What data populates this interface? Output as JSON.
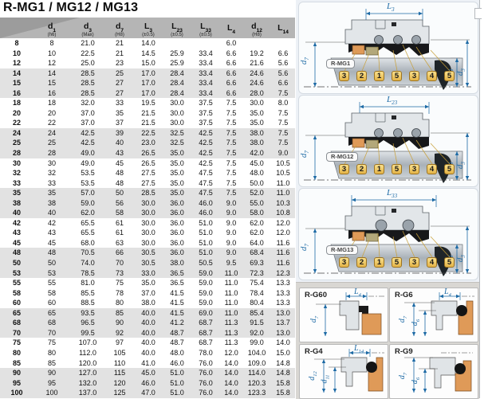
{
  "title": "R-MG1 / MG12 / MG13",
  "colors": {
    "dimension_blue": "#1d6aa5",
    "balloon_gold": "#e3b347",
    "seal_face_orange": "#df9a58",
    "seat_ring_olive": "#b3a87a",
    "row_shade_gray": "#e2e2e2",
    "header_gray": "#b5b5b5"
  },
  "table": {
    "headers": [
      {
        "sym": "",
        "sub": "",
        "tol": ""
      },
      {
        "sym": "d",
        "sub": "1",
        "tol": "(h6)"
      },
      {
        "sym": "d",
        "sub": "3",
        "tol": "(Max)"
      },
      {
        "sym": "d",
        "sub": "7",
        "tol": "(H8)"
      },
      {
        "sym": "L",
        "sub": "3",
        "tol": "(±0.5)"
      },
      {
        "sym": "L",
        "sub": "23",
        "tol": "(±0.5)"
      },
      {
        "sym": "L",
        "sub": "33",
        "tol": "(±0.5)"
      },
      {
        "sym": "L",
        "sub": "4",
        "tol": ""
      },
      {
        "sym": "d",
        "sub": "12",
        "tol": "(H8)"
      },
      {
        "sym": "L",
        "sub": "14",
        "tol": ""
      }
    ],
    "rows": [
      [
        "8",
        "8",
        "21.0",
        "21",
        "14.0",
        "",
        "",
        "6.0",
        "",
        ""
      ],
      [
        "10",
        "10",
        "22.5",
        "21",
        "14.5",
        "25.9",
        "33.4",
        "6.6",
        "19.2",
        "6.6"
      ],
      [
        "12",
        "12",
        "25.0",
        "23",
        "15.0",
        "25.9",
        "33.4",
        "6.6",
        "21.6",
        "5.6"
      ],
      [
        "14",
        "14",
        "28.5",
        "25",
        "17.0",
        "28.4",
        "33.4",
        "6.6",
        "24.6",
        "5.6"
      ],
      [
        "15",
        "15",
        "28.5",
        "27",
        "17.0",
        "28.4",
        "33.4",
        "6.6",
        "24.6",
        "6.6"
      ],
      [
        "16",
        "16",
        "28.5",
        "27",
        "17.0",
        "28.4",
        "33.4",
        "6.6",
        "28.0",
        "7.5"
      ],
      [
        "18",
        "18",
        "32.0",
        "33",
        "19.5",
        "30.0",
        "37.5",
        "7.5",
        "30.0",
        "8.0"
      ],
      [
        "20",
        "20",
        "37.0",
        "35",
        "21.5",
        "30.0",
        "37.5",
        "7.5",
        "35.0",
        "7.5"
      ],
      [
        "22",
        "22",
        "37.0",
        "37",
        "21.5",
        "30.0",
        "37.5",
        "7.5",
        "35.0",
        "7.5"
      ],
      [
        "24",
        "24",
        "42.5",
        "39",
        "22.5",
        "32.5",
        "42.5",
        "7.5",
        "38.0",
        "7.5"
      ],
      [
        "25",
        "25",
        "42.5",
        "40",
        "23.0",
        "32.5",
        "42.5",
        "7.5",
        "38.0",
        "7.5"
      ],
      [
        "28",
        "28",
        "49.0",
        "43",
        "26.5",
        "35.0",
        "42.5",
        "7.5",
        "42.0",
        "9.0"
      ],
      [
        "30",
        "30",
        "49.0",
        "45",
        "26.5",
        "35.0",
        "42.5",
        "7.5",
        "45.0",
        "10.5"
      ],
      [
        "32",
        "32",
        "53.5",
        "48",
        "27.5",
        "35.0",
        "47.5",
        "7.5",
        "48.0",
        "10.5"
      ],
      [
        "33",
        "33",
        "53.5",
        "48",
        "27.5",
        "35.0",
        "47.5",
        "7.5",
        "50.0",
        "11.0"
      ],
      [
        "35",
        "35",
        "57.0",
        "50",
        "28.5",
        "35.0",
        "47.5",
        "7.5",
        "52.0",
        "11.0"
      ],
      [
        "38",
        "38",
        "59.0",
        "56",
        "30.0",
        "36.0",
        "46.0",
        "9.0",
        "55.0",
        "10.3"
      ],
      [
        "40",
        "40",
        "62.0",
        "58",
        "30.0",
        "36.0",
        "46.0",
        "9.0",
        "58.0",
        "10.8"
      ],
      [
        "42",
        "42",
        "65.5",
        "61",
        "30.0",
        "36.0",
        "51.0",
        "9.0",
        "62.0",
        "12.0"
      ],
      [
        "43",
        "43",
        "65.5",
        "61",
        "30.0",
        "36.0",
        "51.0",
        "9.0",
        "62.0",
        "12.0"
      ],
      [
        "45",
        "45",
        "68.0",
        "63",
        "30.0",
        "36.0",
        "51.0",
        "9.0",
        "64.0",
        "11.6"
      ],
      [
        "48",
        "48",
        "70.5",
        "66",
        "30.5",
        "36.0",
        "51.0",
        "9.0",
        "68.4",
        "11.6"
      ],
      [
        "50",
        "50",
        "74.0",
        "70",
        "30.5",
        "38.0",
        "50.5",
        "9.5",
        "69.3",
        "11.6"
      ],
      [
        "53",
        "53",
        "78.5",
        "73",
        "33.0",
        "36.5",
        "59.0",
        "11.0",
        "72.3",
        "12.3"
      ],
      [
        "55",
        "55",
        "81.0",
        "75",
        "35.0",
        "36.5",
        "59.0",
        "11.0",
        "75.4",
        "13.3"
      ],
      [
        "58",
        "58",
        "85.5",
        "78",
        "37.0",
        "41.5",
        "59.0",
        "11.0",
        "78.4",
        "13.3"
      ],
      [
        "60",
        "60",
        "88.5",
        "80",
        "38.0",
        "41.5",
        "59.0",
        "11.0",
        "80.4",
        "13.3"
      ],
      [
        "65",
        "65",
        "93.5",
        "85",
        "40.0",
        "41.5",
        "69.0",
        "11.0",
        "85.4",
        "13.0"
      ],
      [
        "68",
        "68",
        "96.5",
        "90",
        "40.0",
        "41.2",
        "68.7",
        "11.3",
        "91.5",
        "13.7"
      ],
      [
        "70",
        "70",
        "99.5",
        "92",
        "40.0",
        "48.7",
        "68.7",
        "11.3",
        "92.0",
        "13.0"
      ],
      [
        "75",
        "75",
        "107.0",
        "97",
        "40.0",
        "48.7",
        "68.7",
        "11.3",
        "99.0",
        "14.0"
      ],
      [
        "80",
        "80",
        "112.0",
        "105",
        "40.0",
        "48.0",
        "78.0",
        "12.0",
        "104.0",
        "15.0"
      ],
      [
        "85",
        "85",
        "120.0",
        "110",
        "41.0",
        "46.0",
        "76.0",
        "14.0",
        "109.0",
        "14.8"
      ],
      [
        "90",
        "90",
        "127.0",
        "115",
        "45.0",
        "51.0",
        "76.0",
        "14.0",
        "114.0",
        "14.8"
      ],
      [
        "95",
        "95",
        "132.0",
        "120",
        "46.0",
        "51.0",
        "76.0",
        "14.0",
        "120.3",
        "15.8"
      ],
      [
        "100",
        "100",
        "137.0",
        "125",
        "47.0",
        "51.0",
        "76.0",
        "14.0",
        "123.3",
        "15.8"
      ]
    ]
  },
  "diagrams": [
    {
      "id": "R-MG1",
      "top_dim": {
        "sym": "L",
        "sub": "3"
      },
      "left_dim": {
        "sym": "d",
        "sub": "7"
      },
      "right_dims": [
        {
          "sym": "d",
          "sub": "1"
        },
        {
          "sym": "d",
          "sub": "3"
        }
      ],
      "balloons": [
        "3",
        "2",
        "1",
        "5",
        "3",
        "4",
        "5"
      ]
    },
    {
      "id": "R-MG12",
      "top_dim": {
        "sym": "L",
        "sub": "23"
      },
      "left_dim": {
        "sym": "d",
        "sub": "7"
      },
      "right_dims": [
        {
          "sym": "d",
          "sub": "1"
        },
        {
          "sym": "d",
          "sub": "3"
        }
      ],
      "balloons": [
        "3",
        "2",
        "1",
        "5",
        "3",
        "4",
        "5"
      ]
    },
    {
      "id": "R-MG13",
      "top_dim": {
        "sym": "L",
        "sub": "33"
      },
      "left_dim": {
        "sym": "d",
        "sub": "7"
      },
      "right_dims": [
        {
          "sym": "d",
          "sub": "1"
        },
        {
          "sym": "d",
          "sub": "3"
        }
      ],
      "balloons": [
        "3",
        "2",
        "1",
        "5",
        "3",
        "4",
        "5"
      ]
    }
  ],
  "seats": [
    {
      "id": "R-G60",
      "top_dim": {
        "sym": "L",
        "sub": "4"
      },
      "v_dims": [
        {
          "sym": "d",
          "sub": "7"
        }
      ]
    },
    {
      "id": "R-G6",
      "top_dim": {
        "sym": "L",
        "sub": "4"
      },
      "v_dims": [
        {
          "sym": "d",
          "sub": "7"
        },
        {
          "sym": "d",
          "sub": "6"
        }
      ]
    },
    {
      "id": "R-G4",
      "top_dim": {
        "sym": "L",
        "sub": "14"
      },
      "v_dims": [
        {
          "sym": "d",
          "sub": "12"
        },
        {
          "sym": "d",
          "sub": "11"
        }
      ]
    },
    {
      "id": "R-G9",
      "top_dim": null,
      "v_dims": [
        {
          "sym": "d",
          "sub": "7"
        },
        {
          "sym": "d",
          "sub": "6"
        }
      ]
    }
  ]
}
